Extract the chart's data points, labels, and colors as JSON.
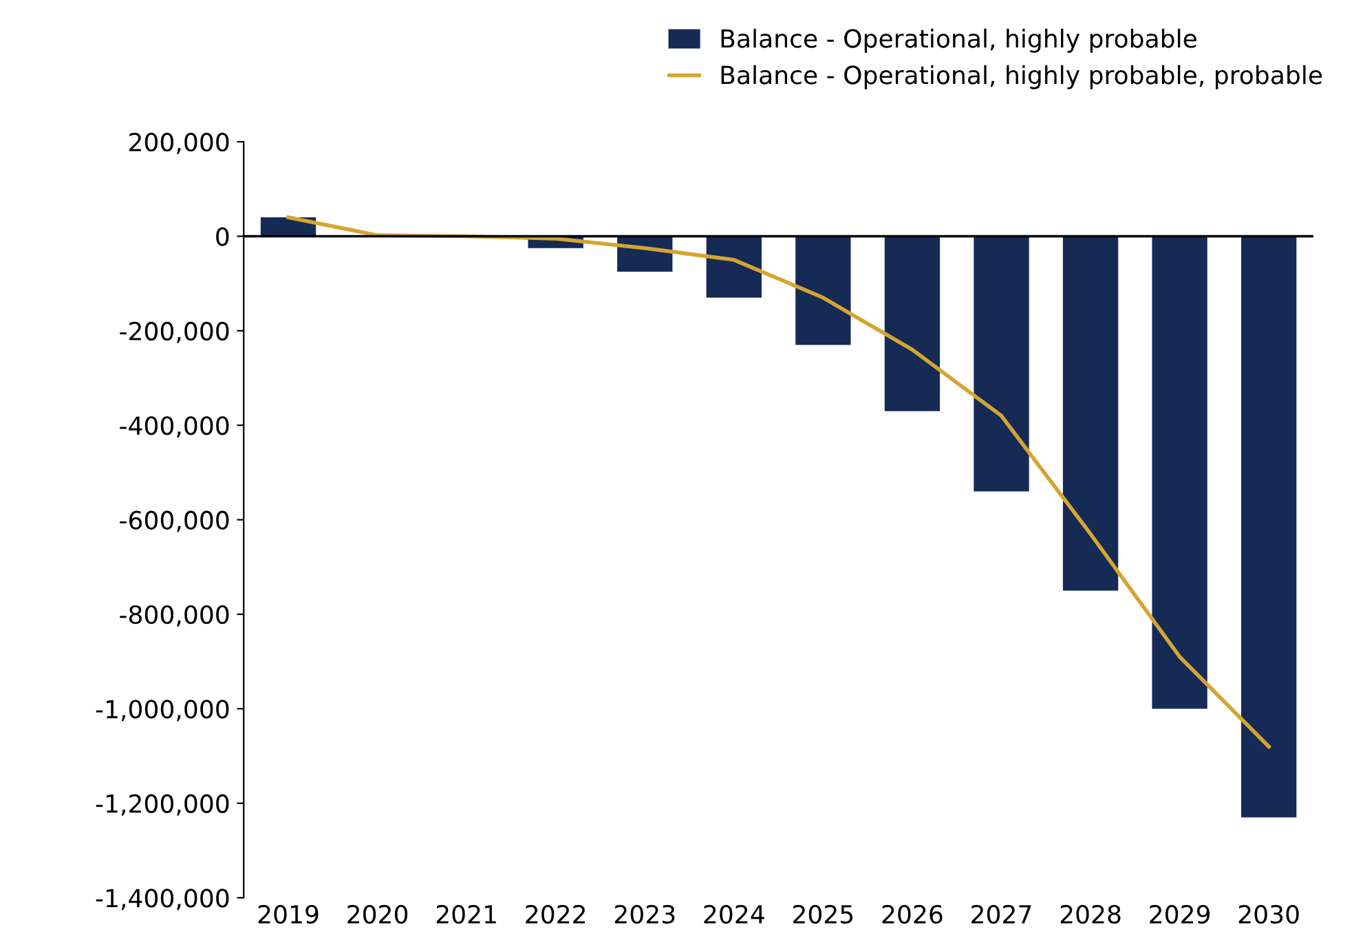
{
  "chart_data": {
    "type": "bar",
    "categories": [
      "2019",
      "2020",
      "2021",
      "2022",
      "2023",
      "2024",
      "2025",
      "2026",
      "2027",
      "2028",
      "2029",
      "2030"
    ],
    "series": [
      {
        "name": "Balance - Operational, highly probable",
        "color": "#152a55",
        "values": [
          40000,
          0,
          0,
          -25000,
          -75000,
          -130000,
          -230000,
          -370000,
          -540000,
          -750000,
          -1000000,
          -1230000
        ]
      },
      {
        "name": "Balance - Operational, highly probable, probable",
        "type": "line",
        "color": "#d4a531",
        "values": [
          40000,
          2000,
          0,
          -5000,
          -25000,
          -50000,
          -130000,
          -240000,
          -380000,
          -630000,
          -890000,
          -1080000
        ]
      }
    ],
    "ylim": [
      -1400000,
      200000
    ],
    "yticks": [
      {
        "value": 200000,
        "label": "200,000"
      },
      0,
      {
        "value": -200000,
        "label": "-200,000"
      },
      {
        "value": -400000,
        "label": "-400,000"
      },
      {
        "value": -600000,
        "label": "-600,000"
      },
      {
        "value": -800000,
        "label": "-800,000"
      },
      {
        "value": -1000000,
        "label": "-1,000,000"
      },
      {
        "value": -1200000,
        "label": "-1,200,000"
      },
      {
        "value": -1400000,
        "label": "-1,400,000"
      }
    ],
    "ref_lines": [
      {
        "axis": "y",
        "value": 0,
        "color": "#000000"
      }
    ],
    "grid": false,
    "legend": "top right"
  }
}
